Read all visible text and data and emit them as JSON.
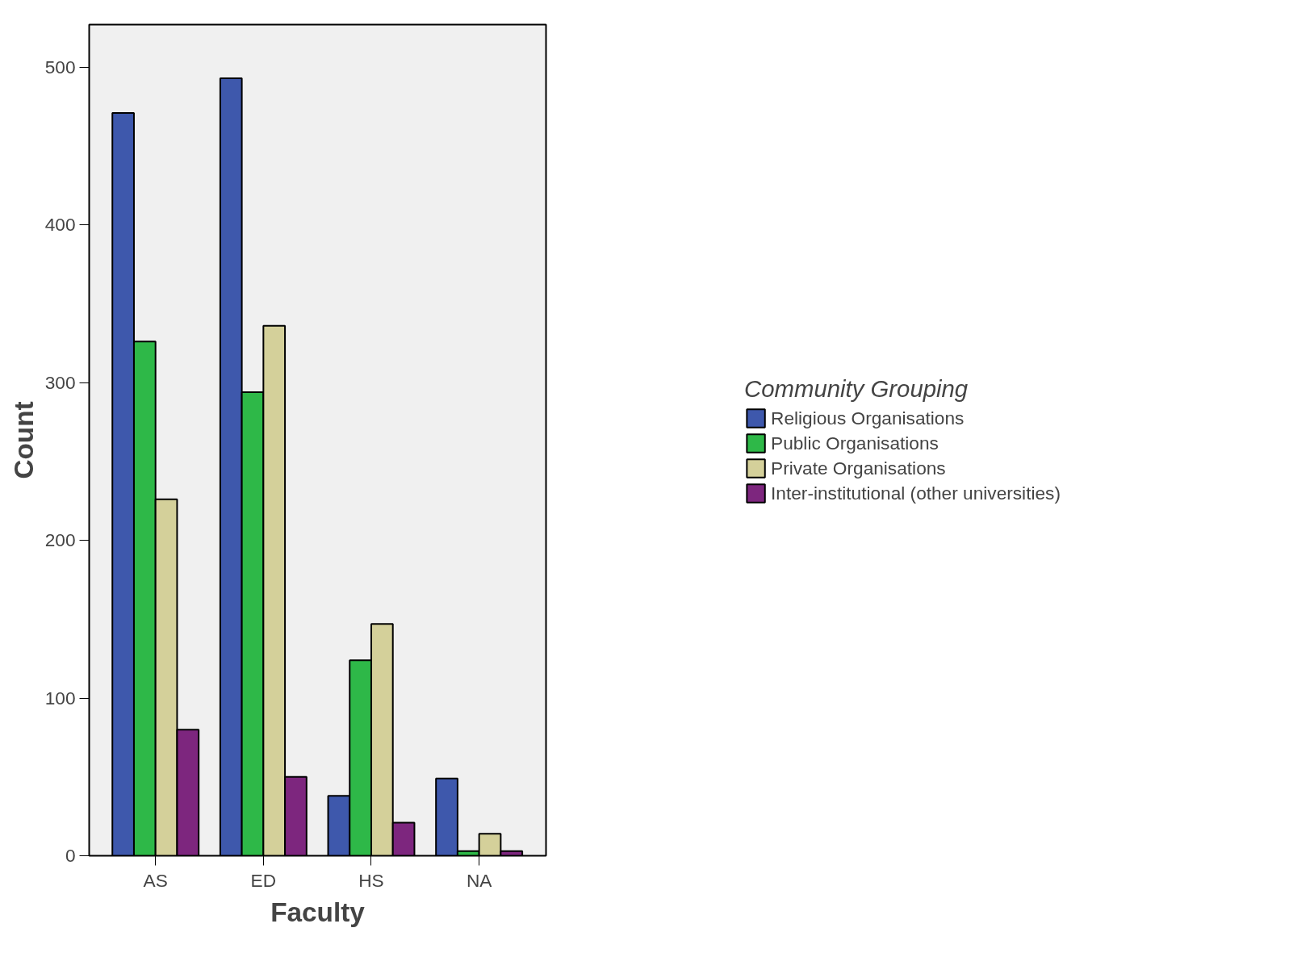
{
  "chart_data": {
    "type": "bar",
    "xlabel": "Faculty",
    "ylabel": "Count",
    "legend_title": "Community Grouping",
    "categories": [
      "AS",
      "ED",
      "HS",
      "NA"
    ],
    "series": [
      {
        "name": "Religious Organisations",
        "color": "#3e58ac",
        "values": [
          471,
          493,
          38,
          49
        ]
      },
      {
        "name": "Public Organisations",
        "color": "#2eb848",
        "values": [
          326,
          294,
          124,
          3
        ]
      },
      {
        "name": "Private Organisations",
        "color": "#d4d09a",
        "values": [
          226,
          336,
          147,
          14
        ]
      },
      {
        "name": "Inter-institutional (other universities)",
        "color": "#7d267e",
        "values": [
          80,
          50,
          21,
          3
        ]
      }
    ],
    "ylim": [
      0,
      527
    ],
    "yticks": [
      0,
      100,
      200,
      300,
      400,
      500
    ],
    "grid": false,
    "legend": "right"
  }
}
